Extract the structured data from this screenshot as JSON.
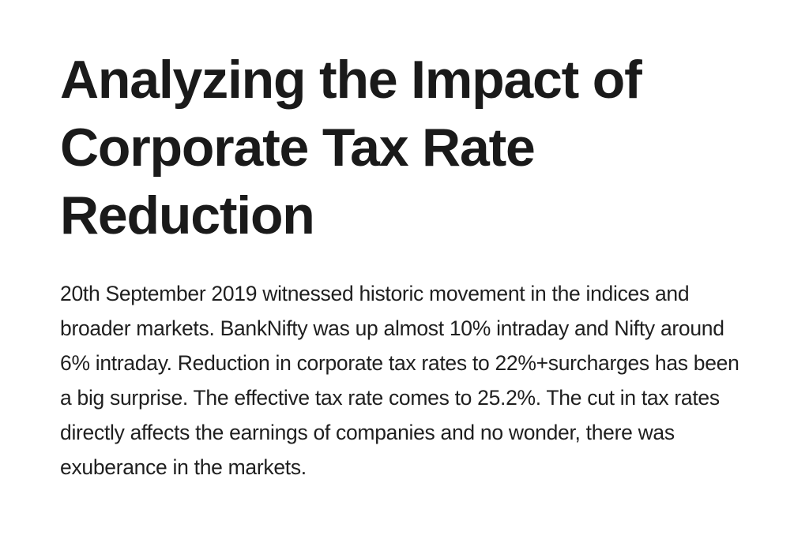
{
  "article": {
    "title": "Analyzing the Impact of Corporate Tax Rate Reduction",
    "paragraph": "20th September 2019 witnessed historic movement in the indices and broader markets. BankNifty was up almost 10% intraday and Nifty around 6% intraday. Reduction in corporate tax rates to 22%+surcharges has been a big surprise. The effective tax rate comes to 25.2%. The cut in tax rates directly affects the earnings of companies and no wonder, there was exuberance in the markets."
  }
}
